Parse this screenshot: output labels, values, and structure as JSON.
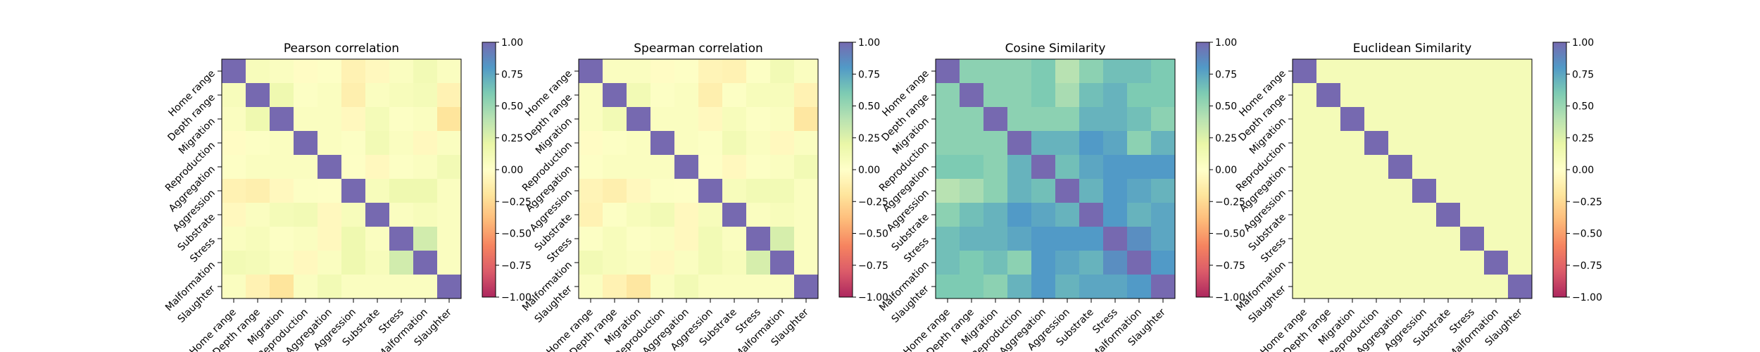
{
  "labels": [
    "Home range",
    "Depth range",
    "Migration",
    "Reproduction",
    "Aggregation",
    "Aggression",
    "Substrate",
    "Stress",
    "Malformation",
    "Slaughter"
  ],
  "colormap": {
    "name": "Spectral",
    "stops": [
      "#9e0142",
      "#d53e4f",
      "#f46d43",
      "#fdae61",
      "#fee08b",
      "#ffffbf",
      "#e6f598",
      "#abdda4",
      "#66c2a5",
      "#3288bd",
      "#5e4fa2"
    ]
  },
  "cell_alpha": 0.85,
  "colorbar_ticks": [
    "1.00",
    "0.75",
    "0.50",
    "0.25",
    "0.00",
    "−0.25",
    "−0.50",
    "−0.75",
    "−1.00"
  ],
  "chart_data": [
    {
      "type": "heatmap",
      "title": "Pearson correlation",
      "vmin": -1,
      "vmax": 1,
      "matrix": [
        [
          1.0,
          0.08,
          0.05,
          -0.02,
          0.02,
          -0.1,
          -0.05,
          0.05,
          0.12,
          0.05
        ],
        [
          0.08,
          1.0,
          0.15,
          0.03,
          0.05,
          -0.12,
          0.05,
          0.08,
          0.1,
          -0.1
        ],
        [
          0.05,
          0.15,
          1.0,
          0.05,
          0.05,
          -0.05,
          0.1,
          0.03,
          0.05,
          -0.2
        ],
        [
          -0.02,
          0.03,
          0.05,
          1.0,
          0.05,
          0.03,
          0.12,
          0.05,
          -0.05,
          0.05
        ],
        [
          0.02,
          0.05,
          0.05,
          0.05,
          1.0,
          0.02,
          -0.05,
          0.03,
          0.05,
          0.12
        ],
        [
          -0.1,
          -0.12,
          -0.05,
          0.03,
          0.02,
          1.0,
          0.08,
          0.15,
          0.15,
          0.05
        ],
        [
          -0.05,
          0.05,
          0.1,
          0.12,
          -0.05,
          0.08,
          1.0,
          0.05,
          0.08,
          0.05
        ],
        [
          0.05,
          0.08,
          0.03,
          0.05,
          -0.05,
          0.15,
          0.05,
          1.0,
          0.3,
          0.05
        ],
        [
          0.12,
          0.1,
          0.05,
          -0.05,
          0.05,
          0.15,
          0.08,
          0.3,
          1.0,
          0.05
        ],
        [
          0.05,
          -0.1,
          -0.2,
          0.05,
          0.12,
          0.05,
          0.05,
          0.05,
          0.05,
          1.0
        ]
      ]
    },
    {
      "type": "heatmap",
      "title": "Spearman correlation",
      "vmin": -1,
      "vmax": 1,
      "matrix": [
        [
          1.0,
          0.05,
          0.05,
          -0.02,
          0.02,
          -0.08,
          -0.1,
          0.03,
          0.12,
          0.05
        ],
        [
          0.05,
          1.0,
          0.12,
          0.03,
          0.05,
          -0.12,
          0.03,
          0.08,
          0.08,
          -0.1
        ],
        [
          0.05,
          0.12,
          1.0,
          0.05,
          0.05,
          -0.05,
          0.08,
          0.03,
          0.05,
          -0.18
        ],
        [
          -0.02,
          0.03,
          0.05,
          1.0,
          0.05,
          0.03,
          0.12,
          0.05,
          -0.05,
          0.05
        ],
        [
          0.02,
          0.05,
          0.05,
          0.05,
          1.0,
          0.02,
          -0.05,
          0.03,
          0.05,
          0.12
        ],
        [
          -0.08,
          -0.12,
          -0.05,
          0.03,
          0.02,
          1.0,
          0.08,
          0.12,
          0.12,
          0.05
        ],
        [
          -0.1,
          0.03,
          0.08,
          0.12,
          -0.05,
          0.08,
          1.0,
          0.05,
          0.08,
          0.05
        ],
        [
          0.03,
          0.08,
          0.03,
          0.05,
          -0.05,
          0.12,
          0.05,
          1.0,
          0.28,
          0.05
        ],
        [
          0.12,
          0.08,
          0.05,
          -0.05,
          0.05,
          0.12,
          0.08,
          0.28,
          1.0,
          0.05
        ],
        [
          0.05,
          -0.1,
          -0.18,
          0.05,
          0.12,
          0.05,
          0.05,
          0.05,
          0.05,
          1.0
        ]
      ]
    },
    {
      "type": "heatmap",
      "title": "Cosine Similarity",
      "vmin": -1,
      "vmax": 1,
      "matrix": [
        [
          1.0,
          0.55,
          0.55,
          0.55,
          0.6,
          0.4,
          0.55,
          0.65,
          0.65,
          0.6
        ],
        [
          0.55,
          1.0,
          0.55,
          0.55,
          0.6,
          0.45,
          0.65,
          0.7,
          0.6,
          0.6
        ],
        [
          0.55,
          0.55,
          1.0,
          0.55,
          0.55,
          0.55,
          0.7,
          0.7,
          0.65,
          0.55
        ],
        [
          0.55,
          0.55,
          0.55,
          1.0,
          0.7,
          0.7,
          0.8,
          0.75,
          0.55,
          0.7
        ],
        [
          0.6,
          0.6,
          0.55,
          0.7,
          1.0,
          0.65,
          0.75,
          0.8,
          0.8,
          0.8
        ],
        [
          0.4,
          0.45,
          0.55,
          0.7,
          0.65,
          1.0,
          0.7,
          0.8,
          0.75,
          0.7
        ],
        [
          0.55,
          0.65,
          0.7,
          0.8,
          0.75,
          0.7,
          1.0,
          0.8,
          0.7,
          0.75
        ],
        [
          0.65,
          0.7,
          0.7,
          0.75,
          0.8,
          0.8,
          0.8,
          1.0,
          0.85,
          0.75
        ],
        [
          0.65,
          0.6,
          0.65,
          0.55,
          0.8,
          0.75,
          0.7,
          0.85,
          1.0,
          0.8
        ],
        [
          0.6,
          0.6,
          0.55,
          0.7,
          0.8,
          0.7,
          0.75,
          0.75,
          0.8,
          1.0
        ]
      ]
    },
    {
      "type": "heatmap",
      "title": "Euclidean Similarity",
      "vmin": -1,
      "vmax": 1,
      "matrix": [
        [
          1.0,
          0.1,
          0.1,
          0.1,
          0.1,
          0.1,
          0.1,
          0.1,
          0.1,
          0.1
        ],
        [
          0.1,
          1.0,
          0.1,
          0.1,
          0.1,
          0.1,
          0.1,
          0.1,
          0.1,
          0.1
        ],
        [
          0.1,
          0.1,
          1.0,
          0.1,
          0.1,
          0.1,
          0.1,
          0.1,
          0.1,
          0.1
        ],
        [
          0.1,
          0.1,
          0.1,
          1.0,
          0.1,
          0.1,
          0.1,
          0.1,
          0.1,
          0.1
        ],
        [
          0.1,
          0.1,
          0.1,
          0.1,
          1.0,
          0.1,
          0.1,
          0.1,
          0.1,
          0.1
        ],
        [
          0.1,
          0.1,
          0.1,
          0.1,
          0.1,
          1.0,
          0.1,
          0.1,
          0.1,
          0.1
        ],
        [
          0.1,
          0.1,
          0.1,
          0.1,
          0.1,
          0.1,
          1.0,
          0.1,
          0.1,
          0.1
        ],
        [
          0.1,
          0.1,
          0.1,
          0.1,
          0.1,
          0.1,
          0.1,
          1.0,
          0.1,
          0.1
        ],
        [
          0.1,
          0.1,
          0.1,
          0.1,
          0.1,
          0.1,
          0.1,
          0.1,
          1.0,
          0.1
        ],
        [
          0.1,
          0.1,
          0.1,
          0.1,
          0.1,
          0.1,
          0.1,
          0.1,
          0.1,
          1.0
        ]
      ]
    }
  ]
}
